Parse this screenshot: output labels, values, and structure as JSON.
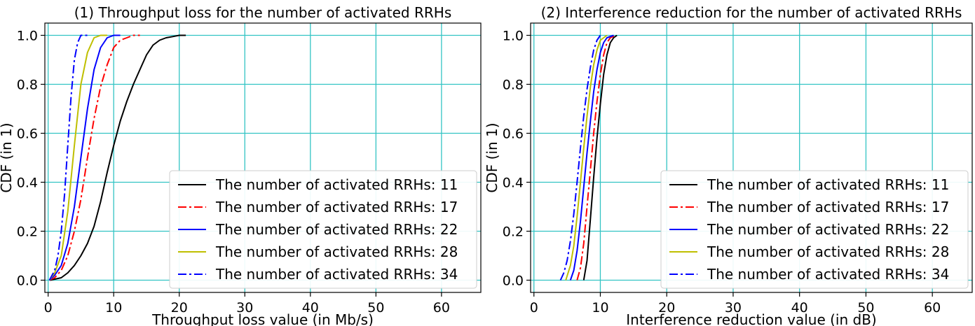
{
  "chart_data": [
    {
      "type": "line",
      "title": "(1) Throughput loss for the number of activated RRHs",
      "xlabel": "Throughput loss value (in Mb/s)",
      "ylabel": "CDF (in 1)",
      "xlim": [
        -0.5,
        66
      ],
      "ylim": [
        -0.05,
        1.05
      ],
      "xticks": [
        0,
        10,
        20,
        30,
        40,
        50,
        60
      ],
      "xtick_labels": [
        "0",
        "10",
        "20",
        "30",
        "40",
        "50",
        "60"
      ],
      "yticks": [
        0,
        0.2,
        0.4,
        0.6,
        0.8,
        1.0
      ],
      "ytick_labels": [
        "0.0",
        "0.2",
        "0.4",
        "0.6",
        "0.8",
        "1.0"
      ],
      "grid": true,
      "grid_color": "#33c4c4",
      "legend_position": "lower-right",
      "series": [
        {
          "name": "The number of activated RRHs: 11",
          "color": "#000000",
          "style": "solid",
          "x": [
            0.3,
            2,
            3,
            4,
            5,
            6,
            7,
            8,
            9,
            10,
            11,
            12,
            13,
            14,
            15,
            16,
            17,
            18,
            19,
            20,
            21
          ],
          "y": [
            0,
            0.01,
            0.03,
            0.06,
            0.1,
            0.15,
            0.22,
            0.32,
            0.44,
            0.55,
            0.65,
            0.73,
            0.8,
            0.86,
            0.92,
            0.96,
            0.98,
            0.99,
            0.995,
            1.0,
            1.0
          ]
        },
        {
          "name": "The number of activated RRHs: 17",
          "color": "#ff0000",
          "style": "dashdot",
          "x": [
            0.2,
            1,
            2,
            3,
            4,
            5,
            6,
            7,
            8,
            9,
            10,
            11,
            12,
            13,
            14
          ],
          "y": [
            0,
            0.01,
            0.04,
            0.1,
            0.2,
            0.33,
            0.5,
            0.66,
            0.79,
            0.88,
            0.95,
            0.98,
            0.99,
            1.0,
            1.0
          ]
        },
        {
          "name": "The number of activated RRHs: 22",
          "color": "#0000ff",
          "style": "solid",
          "x": [
            0.2,
            1,
            2,
            3,
            4,
            5,
            6,
            7,
            8,
            9,
            10,
            11
          ],
          "y": [
            0,
            0.02,
            0.06,
            0.15,
            0.3,
            0.5,
            0.7,
            0.86,
            0.95,
            0.99,
            1.0,
            1.0
          ]
        },
        {
          "name": "The number of activated RRHs: 28",
          "color": "#bfbf00",
          "style": "solid",
          "x": [
            0.2,
            1,
            2,
            3,
            4,
            5,
            6,
            7,
            8,
            9
          ],
          "y": [
            0,
            0.03,
            0.1,
            0.28,
            0.55,
            0.8,
            0.93,
            0.99,
            1.0,
            1.0
          ]
        },
        {
          "name": "The number of activated RRHs: 34",
          "color": "#0000ff",
          "style": "dashdot",
          "x": [
            0.2,
            1,
            1.5,
            2,
            2.5,
            3,
            3.5,
            4,
            4.5,
            5,
            6
          ],
          "y": [
            0,
            0.04,
            0.1,
            0.2,
            0.35,
            0.55,
            0.75,
            0.9,
            0.97,
            1.0,
            1.0
          ]
        }
      ]
    },
    {
      "type": "line",
      "title": "(2) Interference reduction for the number of activated RRHs",
      "xlabel": "Interference reduction value (in dB)",
      "ylabel": "CDF (in 1)",
      "xlim": [
        -0.5,
        66
      ],
      "ylim": [
        -0.05,
        1.05
      ],
      "xticks": [
        0,
        10,
        20,
        30,
        40,
        50,
        60
      ],
      "xtick_labels": [
        "0",
        "10",
        "20",
        "30",
        "40",
        "50",
        "60"
      ],
      "yticks": [
        0,
        0.2,
        0.4,
        0.6,
        0.8,
        1.0
      ],
      "ytick_labels": [
        "0.0",
        "0.2",
        "0.4",
        "0.6",
        "0.8",
        "1.0"
      ],
      "grid": true,
      "grid_color": "#33c4c4",
      "legend_position": "lower-right",
      "series": [
        {
          "name": "The number of activated RRHs: 11",
          "color": "#000000",
          "style": "solid",
          "x": [
            7.5,
            8,
            8.5,
            9,
            9.5,
            10,
            10.5,
            11,
            11.5,
            12,
            12.5
          ],
          "y": [
            0,
            0.08,
            0.25,
            0.42,
            0.58,
            0.72,
            0.84,
            0.92,
            0.97,
            0.99,
            1.0
          ]
        },
        {
          "name": "The number of activated RRHs: 17",
          "color": "#ff0000",
          "style": "dashdot",
          "x": [
            6.5,
            7,
            7.5,
            8,
            8.5,
            9,
            9.5,
            10,
            10.5,
            11,
            11.5,
            12.3
          ],
          "y": [
            0,
            0.05,
            0.15,
            0.3,
            0.45,
            0.6,
            0.73,
            0.84,
            0.92,
            0.97,
            0.99,
            1.0
          ]
        },
        {
          "name": "The number of activated RRHs: 22",
          "color": "#0000ff",
          "style": "solid",
          "x": [
            5.5,
            6,
            6.5,
            7,
            7.5,
            8,
            8.5,
            9,
            9.5,
            10,
            10.5,
            11,
            12
          ],
          "y": [
            0,
            0.04,
            0.12,
            0.24,
            0.38,
            0.52,
            0.65,
            0.77,
            0.86,
            0.93,
            0.97,
            0.99,
            1.0
          ]
        },
        {
          "name": "The number of activated RRHs: 28",
          "color": "#bfbf00",
          "style": "solid",
          "x": [
            4.8,
            5.5,
            6,
            6.5,
            7,
            7.5,
            8,
            8.5,
            9,
            9.5,
            10,
            11
          ],
          "y": [
            0,
            0.06,
            0.14,
            0.26,
            0.4,
            0.54,
            0.67,
            0.79,
            0.88,
            0.94,
            0.98,
            1.0
          ]
        },
        {
          "name": "The number of activated RRHs: 34",
          "color": "#0000ff",
          "style": "dashdot",
          "x": [
            4,
            4.5,
            5,
            5.5,
            6,
            6.5,
            7,
            7.5,
            8,
            8.5,
            9,
            9.5,
            10
          ],
          "y": [
            0,
            0.03,
            0.08,
            0.16,
            0.27,
            0.4,
            0.54,
            0.67,
            0.78,
            0.87,
            0.94,
            0.98,
            1.0
          ]
        }
      ]
    }
  ]
}
